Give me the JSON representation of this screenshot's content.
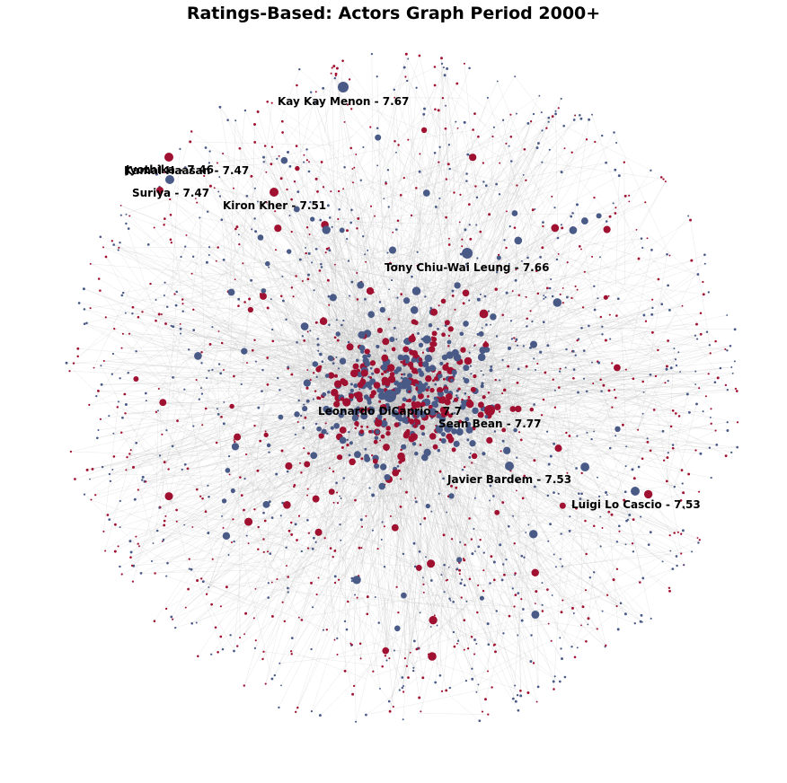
{
  "title": "Ratings-Based: Actors Graph Period 2000+",
  "colors": {
    "group_blue": "#4a5a87",
    "group_red": "#a01030",
    "edge": "#b8b8b8",
    "label": "#000000"
  },
  "labeled_nodes": [
    {
      "name": "Kay Kay Menon - 7.67",
      "group": "blue"
    },
    {
      "name": "Kamal Haasan - 7.47",
      "group": "blue"
    },
    {
      "name": "Jyothika - 7.46",
      "group": "red"
    },
    {
      "name": "Suriya - 7.47",
      "group": "red"
    },
    {
      "name": "Kiron Kher - 7.51",
      "group": "red"
    },
    {
      "name": "Tony Chiu-Wai Leung - 7.66",
      "group": "blue"
    },
    {
      "name": "Leonardo DiCaprio - 7.7",
      "group": "blue"
    },
    {
      "name": "Sean Bean - 7.77",
      "group": "red"
    },
    {
      "name": "Javier Bardem - 7.53",
      "group": "blue"
    },
    {
      "name": "Luigi Lo Cascio - 7.53",
      "group": "blue"
    }
  ]
}
